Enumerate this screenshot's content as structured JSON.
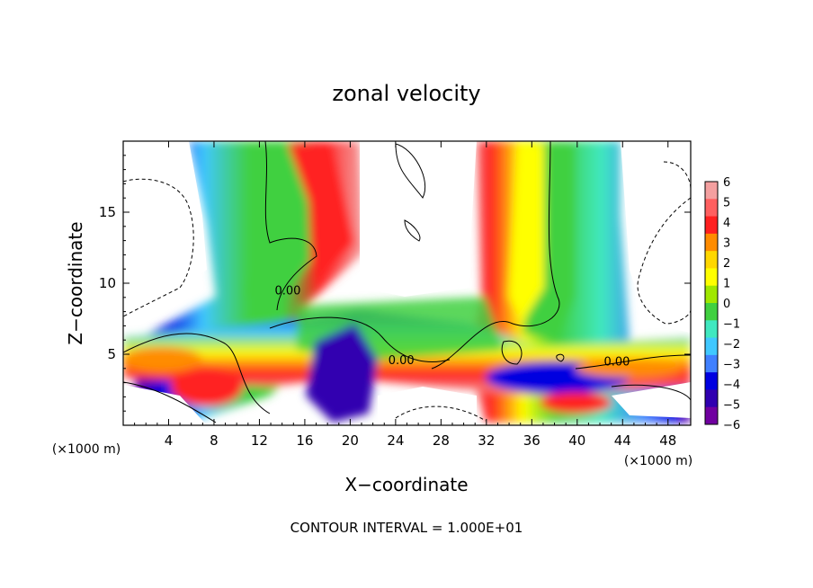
{
  "chart_data": {
    "type": "heatmap",
    "title": "zonal velocity",
    "xlabel": "X−coordinate",
    "ylabel": "Z−coordinate",
    "x_unit": "(×1000 m)",
    "y_unit": "(×1000 m)",
    "xlim": [
      0,
      50
    ],
    "ylim": [
      0,
      20
    ],
    "x_ticks": [
      4,
      8,
      12,
      16,
      20,
      24,
      28,
      32,
      36,
      40,
      44,
      48
    ],
    "y_ticks": [
      5,
      10,
      15
    ],
    "colorbar": {
      "ticks": [
        "6",
        "5",
        "4",
        "3",
        "2",
        "1",
        "0",
        "−1",
        "−2",
        "−3",
        "−4",
        "−5",
        "−6"
      ],
      "range": [
        -6,
        6
      ],
      "colors": [
        "#f4a0a0",
        "#ff6060",
        "#ff2020",
        "#ff8c00",
        "#ffd700",
        "#ffff00",
        "#a0e800",
        "#40d040",
        "#40e8c0",
        "#40c8ff",
        "#4080ff",
        "#0000e0",
        "#3000b0",
        "#7000a0"
      ]
    },
    "contour_labels": [
      {
        "text": "0.00",
        "x": 14.5,
        "y": 9.2
      },
      {
        "text": "0.00",
        "x": 24.5,
        "y": 4.3
      },
      {
        "text": "0.00",
        "x": 43.5,
        "y": 4.2
      }
    ],
    "footer": "CONTOUR INTERVAL = 1.000E+01"
  }
}
